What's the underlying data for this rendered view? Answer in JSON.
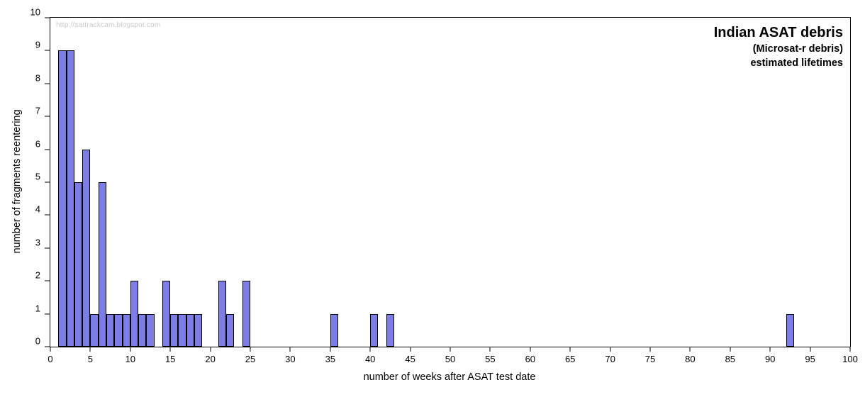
{
  "watermark": "http://sattrackcam.blogspot.com",
  "title": {
    "line1": "Indian ASAT debris",
    "line2": "(Microsat-r debris)",
    "line3": "estimated lifetimes"
  },
  "chart_data": {
    "type": "bar",
    "title": "Indian ASAT debris (Microsat-r debris) estimated lifetimes",
    "xlabel": "number of weeks after ASAT test date",
    "ylabel": "number of fragments reentering",
    "xlim": [
      0,
      100
    ],
    "ylim": [
      0,
      10
    ],
    "x_tick_step": 5,
    "y_tick_step": 1,
    "bin_width": 1,
    "grid": false,
    "legend_position": "none",
    "bar_color": "#7d7de8",
    "bar_border_color": "#000000",
    "bins": [
      {
        "week": 1,
        "count": 9
      },
      {
        "week": 2,
        "count": 9
      },
      {
        "week": 3,
        "count": 5
      },
      {
        "week": 4,
        "count": 6
      },
      {
        "week": 5,
        "count": 1
      },
      {
        "week": 6,
        "count": 5
      },
      {
        "week": 7,
        "count": 1
      },
      {
        "week": 8,
        "count": 1
      },
      {
        "week": 9,
        "count": 1
      },
      {
        "week": 10,
        "count": 2
      },
      {
        "week": 11,
        "count": 1
      },
      {
        "week": 12,
        "count": 1
      },
      {
        "week": 14,
        "count": 2
      },
      {
        "week": 15,
        "count": 1
      },
      {
        "week": 16,
        "count": 1
      },
      {
        "week": 17,
        "count": 1
      },
      {
        "week": 18,
        "count": 1
      },
      {
        "week": 21,
        "count": 2
      },
      {
        "week": 22,
        "count": 1
      },
      {
        "week": 24,
        "count": 2
      },
      {
        "week": 35,
        "count": 1
      },
      {
        "week": 40,
        "count": 1
      },
      {
        "week": 42,
        "count": 1
      },
      {
        "week": 92,
        "count": 1
      }
    ]
  }
}
